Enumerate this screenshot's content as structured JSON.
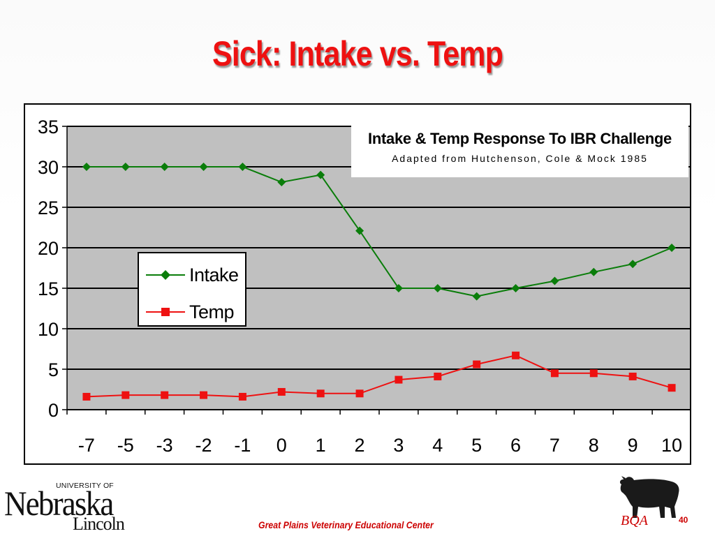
{
  "slide": {
    "title": "Sick: Intake vs. Temp",
    "footer": "Great Plains Veterinary Educational Center",
    "page_number": "40",
    "logo_left": {
      "top_text": "UNIVERSITY OF",
      "main_text": "Nebraska",
      "sub_text": "Lincoln"
    },
    "logo_right": {
      "text": "BQA",
      "icon": "cow-icon"
    }
  },
  "chart_data": {
    "type": "line",
    "title": "Intake & Temp Response To IBR Challenge",
    "subtitle": "Adapted from Hutchenson, Cole & Mock 1985",
    "xlabel": "",
    "ylabel": "",
    "categories": [
      "-7",
      "-5",
      "-3",
      "-2",
      "-1",
      "0",
      "1",
      "2",
      "3",
      "4",
      "5",
      "6",
      "7",
      "8",
      "9",
      "10"
    ],
    "ylim": [
      0,
      35
    ],
    "yticks": [
      0,
      5,
      10,
      15,
      20,
      25,
      30,
      35
    ],
    "grid": true,
    "legend_position": "left-middle",
    "series": [
      {
        "name": "Intake",
        "color": "#0a7d0a",
        "marker": "diamond",
        "values": [
          30,
          30,
          30,
          30,
          30,
          28.1,
          29,
          22.1,
          15,
          15,
          14,
          15,
          15.9,
          17,
          18,
          20
        ]
      },
      {
        "name": "Temp",
        "color": "#ee1111",
        "marker": "square",
        "values": [
          1.6,
          1.8,
          1.8,
          1.8,
          1.6,
          2.2,
          2,
          2,
          3.7,
          4.1,
          5.6,
          6.7,
          4.5,
          4.5,
          4.1,
          2.7
        ]
      }
    ]
  }
}
